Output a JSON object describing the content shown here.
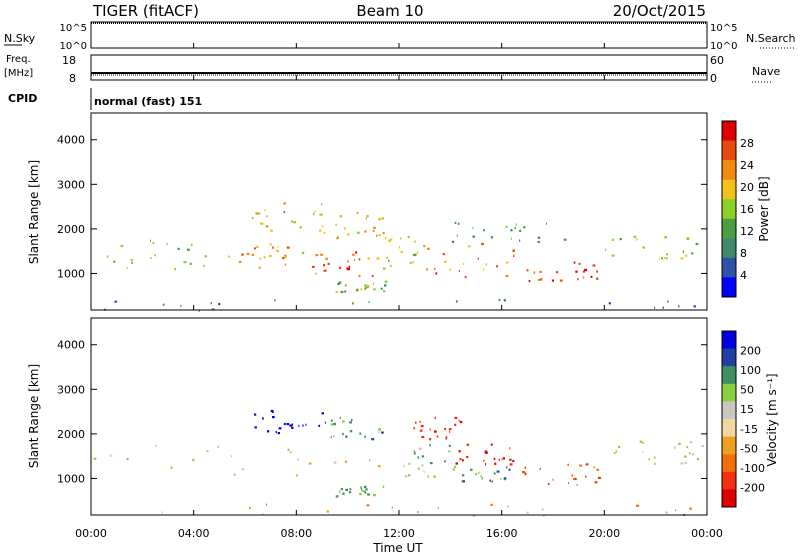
{
  "header": {
    "radar_title": "TIGER (fitACF)",
    "beam": "Beam 10",
    "date": "20/Oct/2015"
  },
  "aux_panels": {
    "nsky_label": "N.Sky",
    "nsky_ticks": [
      "10^5",
      "10^0"
    ],
    "nsearch_label": "N.Search",
    "nsearch_ticks": [
      "10^5",
      "10^0"
    ],
    "freq_label_1": "Freq.",
    "freq_label_2": "[MHz]",
    "freq_ticks": [
      "18",
      "8"
    ],
    "nave_label": "Nave",
    "nave_ticks": [
      "60",
      "0"
    ],
    "cpid_label": "CPID",
    "cpid_text": "normal (fast) 151"
  },
  "colors": {
    "power_scale": [
      "#0000ff",
      "#2a52a8",
      "#3f8a6a",
      "#4aa040",
      "#8cd02a",
      "#f2c21a",
      "#f08a10",
      "#e84a10",
      "#e00000"
    ],
    "velocity_scale": [
      "#e00000",
      "#f03010",
      "#f07010",
      "#f0a020",
      "#f0d8a0",
      "#c8c8c0",
      "#88d040",
      "#3f9060",
      "#2040a0",
      "#0000e0"
    ],
    "ground_scatter": "#c8c8c0"
  },
  "chart_data": [
    {
      "type": "heatmap",
      "name": "power",
      "xlabel": "",
      "ylabel": "Slant Range [km]",
      "x_ticks": [
        "00:00",
        "04:00",
        "08:00",
        "12:00",
        "16:00",
        "20:00",
        "00:00"
      ],
      "x_range_hours": [
        0,
        24
      ],
      "y_ticks": [
        1000,
        2000,
        3000,
        4000
      ],
      "y_range_km": [
        180,
        4600
      ],
      "colorbar_label": "Power [dB]",
      "colorbar_ticks": [
        4,
        8,
        12,
        16,
        20,
        24,
        28
      ],
      "colorbar_range": [
        0,
        32
      ],
      "regions": [
        {
          "t": [
            0.0,
            5.5
          ],
          "r": [
            1050,
            1800
          ],
          "v": 14
        },
        {
          "t": [
            5.5,
            8.5
          ],
          "r": [
            1150,
            1700
          ],
          "v": 22
        },
        {
          "t": [
            8.5,
            11.0
          ],
          "r": [
            950,
            1500
          ],
          "v": 26
        },
        {
          "t": [
            11.0,
            13.0
          ],
          "r": [
            1100,
            1900
          ],
          "v": 18
        },
        {
          "t": [
            13.0,
            16.5
          ],
          "r": [
            900,
            1700
          ],
          "v": 24
        },
        {
          "t": [
            16.5,
            19.8
          ],
          "r": [
            850,
            1300
          ],
          "v": 27
        },
        {
          "t": [
            20.0,
            24.0
          ],
          "r": [
            1350,
            1900
          ],
          "v": 16
        },
        {
          "t": [
            6.0,
            9.0
          ],
          "r": [
            1900,
            2600
          ],
          "v": 18
        },
        {
          "t": [
            9.0,
            11.5
          ],
          "r": [
            1800,
            2400
          ],
          "v": 20
        },
        {
          "t": [
            14.0,
            19.0
          ],
          "r": [
            1700,
            2200
          ],
          "v": 12
        },
        {
          "t": [
            0.0,
            24.0
          ],
          "r": [
            180,
            450
          ],
          "v": 8
        },
        {
          "t": [
            9.5,
            11.5
          ],
          "r": [
            600,
            850
          ],
          "v": 14
        }
      ]
    },
    {
      "type": "heatmap",
      "name": "velocity",
      "xlabel": "Time UT",
      "ylabel": "Slant Range [km]",
      "x_ticks": [
        "00:00",
        "04:00",
        "08:00",
        "12:00",
        "16:00",
        "20:00",
        "00:00"
      ],
      "x_range_hours": [
        0,
        24
      ],
      "y_ticks": [
        1000,
        2000,
        3000,
        4000
      ],
      "y_range_km": [
        180,
        4600
      ],
      "colorbar_label": "Velocity [m s⁻¹]",
      "colorbar_ticks": [
        "200",
        "100",
        "50",
        "15",
        "-15",
        "-50",
        "-100",
        "-200"
      ],
      "regions": [
        {
          "t": [
            0.0,
            12.0
          ],
          "r": [
            1050,
            1800
          ],
          "v": 0
        },
        {
          "t": [
            12.0,
            14.0
          ],
          "r": [
            1000,
            1800
          ],
          "v": 30
        },
        {
          "t": [
            14.0,
            16.5
          ],
          "r": [
            1300,
            1800
          ],
          "v": -150
        },
        {
          "t": [
            14.0,
            16.5
          ],
          "r": [
            950,
            1300
          ],
          "v": 60
        },
        {
          "t": [
            16.5,
            19.8
          ],
          "r": [
            850,
            1350
          ],
          "v": -80
        },
        {
          "t": [
            20.0,
            24.0
          ],
          "r": [
            1350,
            1900
          ],
          "v": 0
        },
        {
          "t": [
            5.8,
            9.0
          ],
          "r": [
            2000,
            2600
          ],
          "v": 200
        },
        {
          "t": [
            9.0,
            11.5
          ],
          "r": [
            1900,
            2400
          ],
          "v": 60
        },
        {
          "t": [
            12.5,
            14.5
          ],
          "r": [
            1900,
            2400
          ],
          "v": -120
        },
        {
          "t": [
            0.0,
            24.0
          ],
          "r": [
            180,
            450
          ],
          "v": -30
        },
        {
          "t": [
            9.5,
            11.5
          ],
          "r": [
            600,
            850
          ],
          "v": 40
        }
      ]
    }
  ]
}
